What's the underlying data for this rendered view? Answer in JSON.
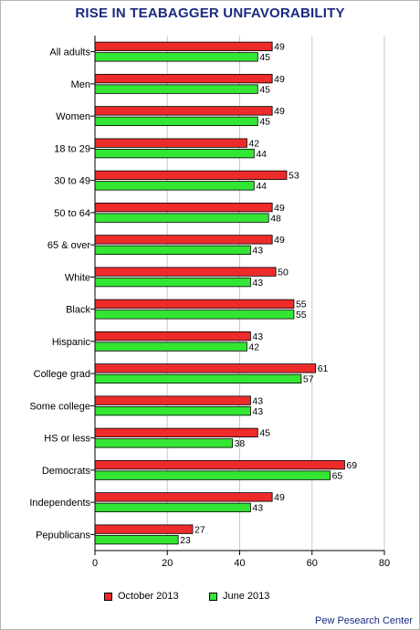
{
  "chart_data": {
    "type": "bar",
    "orientation": "horizontal",
    "title": "RISE IN TEABAGGER UNFAVORABILITY",
    "categories": [
      "All adults",
      "Men",
      "Women",
      "18 to 29",
      "30 to 49",
      "50 to 64",
      "65 & over",
      "White",
      "Black",
      "Hispanic",
      "College grad",
      "Some college",
      "HS or less",
      "Democrats",
      "Independents",
      "Pepublicans"
    ],
    "series": [
      {
        "name": "October 2013",
        "color": "#ee2b2b",
        "values": [
          49,
          49,
          49,
          42,
          53,
          49,
          49,
          50,
          55,
          43,
          61,
          43,
          45,
          69,
          49,
          27
        ]
      },
      {
        "name": "June 2013",
        "color": "#33e633",
        "values": [
          45,
          45,
          45,
          44,
          44,
          48,
          43,
          43,
          55,
          42,
          57,
          43,
          38,
          65,
          43,
          23
        ]
      }
    ],
    "xlim": [
      0,
      80
    ],
    "xticks": [
      0,
      20,
      40,
      60,
      80
    ],
    "grid": true,
    "legend_position": "bottom",
    "source": "Pew Pesearch Center"
  }
}
